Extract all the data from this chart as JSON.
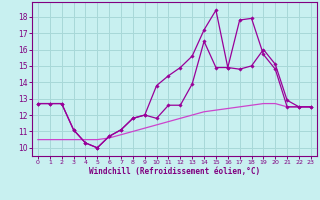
{
  "background_color": "#c8f0f0",
  "grid_color": "#a8d8d8",
  "line_color": "#990099",
  "line_color2": "#cc44cc",
  "xlabel": "Windchill (Refroidissement éolien,°C)",
  "xlabel_color": "#800080",
  "tick_color": "#800080",
  "xlim": [
    -0.5,
    23.5
  ],
  "ylim": [
    9.5,
    18.9
  ],
  "yticks": [
    10,
    11,
    12,
    13,
    14,
    15,
    16,
    17,
    18
  ],
  "xticks": [
    0,
    1,
    2,
    3,
    4,
    5,
    6,
    7,
    8,
    9,
    10,
    11,
    12,
    13,
    14,
    15,
    16,
    17,
    18,
    19,
    20,
    21,
    22,
    23
  ],
  "series1_x": [
    0,
    1,
    2,
    3,
    4,
    5,
    6,
    7,
    8,
    9,
    10,
    11,
    12,
    13,
    14,
    15,
    16,
    17,
    18,
    19,
    20,
    21,
    22,
    23
  ],
  "series1_y": [
    12.7,
    12.7,
    12.7,
    11.1,
    10.3,
    10.0,
    10.7,
    11.1,
    11.8,
    12.0,
    11.8,
    12.6,
    12.6,
    13.9,
    16.5,
    14.9,
    14.9,
    14.8,
    15.0,
    16.0,
    15.1,
    12.9,
    12.5,
    12.5
  ],
  "series2_x": [
    0,
    1,
    2,
    3,
    4,
    5,
    6,
    7,
    8,
    9,
    10,
    11,
    12,
    13,
    14,
    15,
    16,
    17,
    18,
    19,
    20,
    21,
    22,
    23
  ],
  "series2_y": [
    12.7,
    12.7,
    12.7,
    11.1,
    10.3,
    10.0,
    10.7,
    11.1,
    11.8,
    12.0,
    13.8,
    14.4,
    14.9,
    15.6,
    17.2,
    18.4,
    14.9,
    17.8,
    17.9,
    15.7,
    14.8,
    12.5,
    12.5,
    12.5
  ],
  "series3_x": [
    0,
    1,
    2,
    3,
    4,
    5,
    6,
    7,
    8,
    9,
    10,
    11,
    12,
    13,
    14,
    15,
    16,
    17,
    18,
    19,
    20,
    21,
    22,
    23
  ],
  "series3_y": [
    10.5,
    10.5,
    10.5,
    10.5,
    10.5,
    10.5,
    10.6,
    10.8,
    11.0,
    11.2,
    11.4,
    11.6,
    11.8,
    12.0,
    12.2,
    12.3,
    12.4,
    12.5,
    12.6,
    12.7,
    12.7,
    12.5,
    12.5,
    12.5
  ]
}
